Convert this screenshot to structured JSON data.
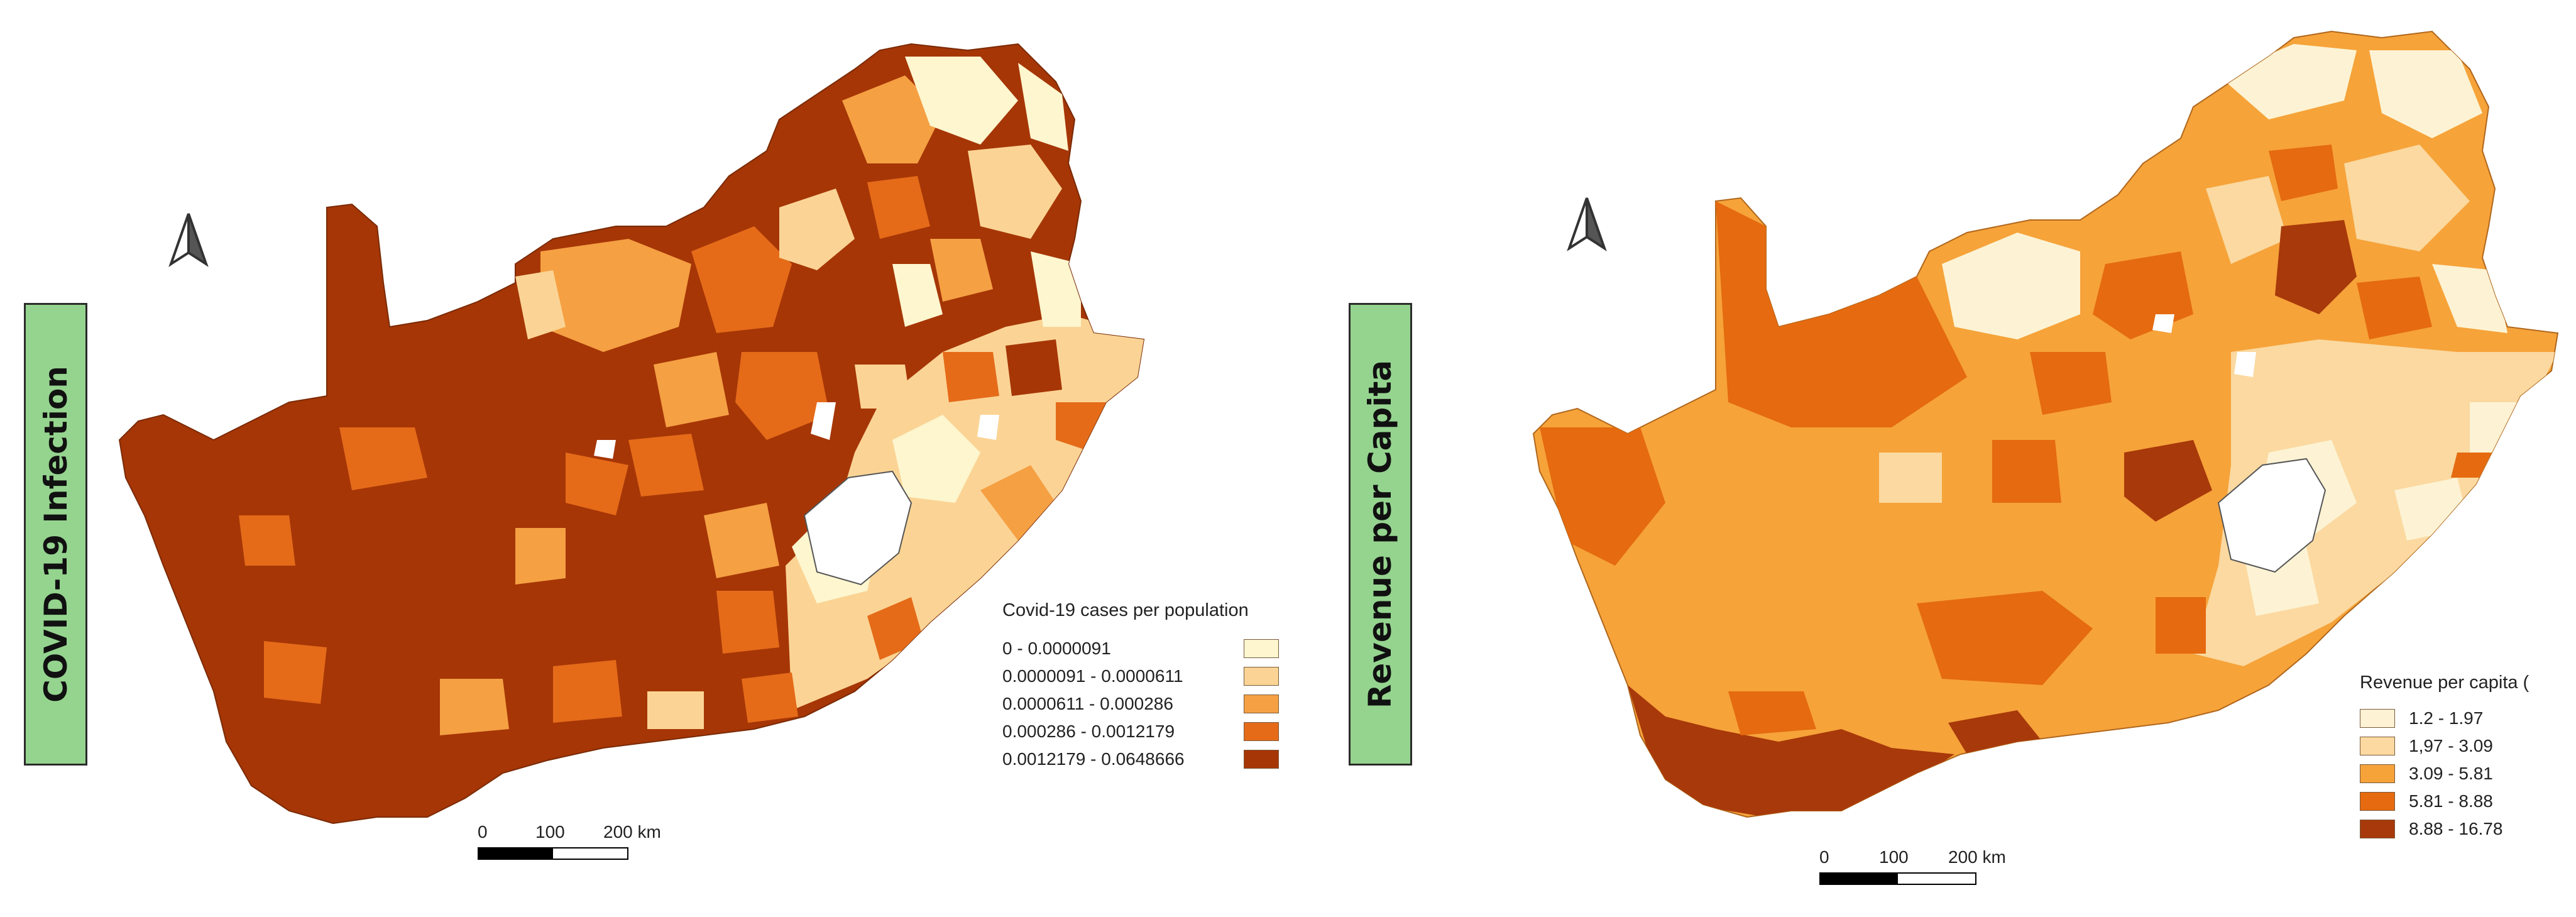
{
  "panels": [
    {
      "side_label": "COVID-19 Infection",
      "legend": {
        "title": "Covid-19 cases per population",
        "classes": [
          {
            "label": "0 - 0.0000091",
            "color": "#fdf6cf"
          },
          {
            "label": "0.0000091 - 0.0000611",
            "color": "#fbd495"
          },
          {
            "label": "0.0000611 - 0.000286",
            "color": "#f5a043"
          },
          {
            "label": "0.000286 - 0.0012179",
            "color": "#e56b19"
          },
          {
            "label": "0.0012179 - 0.0648666",
            "color": "#a63606"
          }
        ]
      },
      "scale": {
        "labels": [
          "0",
          "100",
          "200 km"
        ]
      },
      "north_arrow": "north-arrow-icon"
    },
    {
      "side_label": "Revenue per Capita",
      "legend": {
        "title": "Revenue per capita (",
        "classes": [
          {
            "label": "1.2 - 1.97",
            "color": "#fdf3d4"
          },
          {
            "label": "1,97 - 3.09",
            "color": "#fbd9a0"
          },
          {
            "label": "3.09 - 5.81",
            "color": "#f6a33a"
          },
          {
            "label": "5.81 - 8.88",
            "color": "#e56a10"
          },
          {
            "label": "8.88 - 16.78",
            "color": "#a8390a"
          }
        ]
      },
      "scale": {
        "labels": [
          "0",
          "100",
          "200 km"
        ]
      },
      "north_arrow": "north-arrow-icon"
    }
  ]
}
